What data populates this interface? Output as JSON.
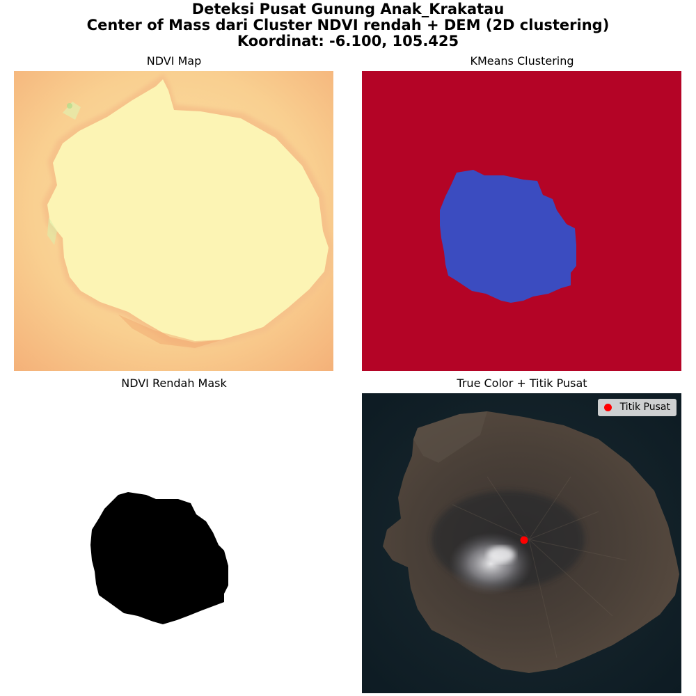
{
  "figure": {
    "title_line1": "Deteksi Pusat Gunung Anak_Krakatau",
    "title_line2": "Center of Mass dari Cluster NDVI rendah + DEM (2D clustering)",
    "title_line3": "Koordinat: -6.100, 105.425"
  },
  "panels": {
    "ndvi_map": {
      "title": "NDVI Map"
    },
    "kmeans": {
      "title": "KMeans Clustering",
      "colors": {
        "background_cluster": "#b40426",
        "crater_cluster": "#3b4cc0"
      }
    },
    "mask": {
      "title": "NDVI Rendah Mask"
    },
    "true_color": {
      "title": "True Color + Titik Pusat",
      "legend_label": "Titik Pusat",
      "marker_color": "#ff0000"
    }
  }
}
